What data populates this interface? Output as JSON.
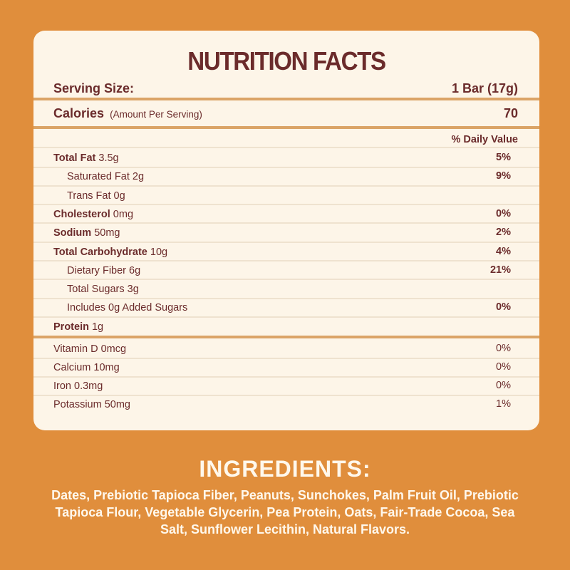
{
  "label": {
    "title": "NUTRITION FACTS",
    "serving_size_label": "Serving Size:",
    "serving_size_value": "1 Bar (17g)",
    "calories_label": "Calories",
    "calories_note": "(Amount Per Serving)",
    "calories_value": "70",
    "daily_value_header": "% Daily Value",
    "nutrients": [
      {
        "name": "Total Fat",
        "amount": "3.5g",
        "dv": "5%"
      },
      {
        "name": "Saturated Fat 2g",
        "amount": "",
        "dv": "9%"
      },
      {
        "name": "Trans Fat 0g",
        "amount": "",
        "dv": ""
      },
      {
        "name": "Cholesterol",
        "amount": "0mg",
        "dv": "0%"
      },
      {
        "name": "Sodium",
        "amount": "50mg",
        "dv": "2%"
      },
      {
        "name": "Total Carbohydrate",
        "amount": "10g",
        "dv": "4%"
      },
      {
        "name": "Dietary Fiber 6g",
        "amount": "",
        "dv": "21%"
      },
      {
        "name": "Total Sugars 3g",
        "amount": "",
        "dv": ""
      },
      {
        "name": "Includes 0g Added Sugars",
        "amount": "",
        "dv": "0%"
      },
      {
        "name": "Protein",
        "amount": "1g",
        "dv": ""
      }
    ],
    "vitamins": [
      {
        "name": "Vitamin D 0mcg",
        "dv": "0%"
      },
      {
        "name": "Calcium 10mg",
        "dv": "0%"
      },
      {
        "name": "Iron 0.3mg",
        "dv": "0%"
      },
      {
        "name": "Potassium 50mg",
        "dv": "1%"
      }
    ]
  },
  "ingredients": {
    "title": "INGREDIENTS:",
    "text": "Dates, Prebiotic Tapioca Fiber, Peanuts, Sunchokes, Palm Fruit Oil, Prebiotic Tapioca Flour, Vegetable Glycerin, Pea Protein, Oats, Fair-Trade Cocoa, Sea Salt, Sunflower Lecithin, Natural Flavors."
  },
  "colors": {
    "background": "#e08e3c",
    "card": "#fdf5e8",
    "text": "#6b2b2b",
    "divider": "#dba467"
  }
}
